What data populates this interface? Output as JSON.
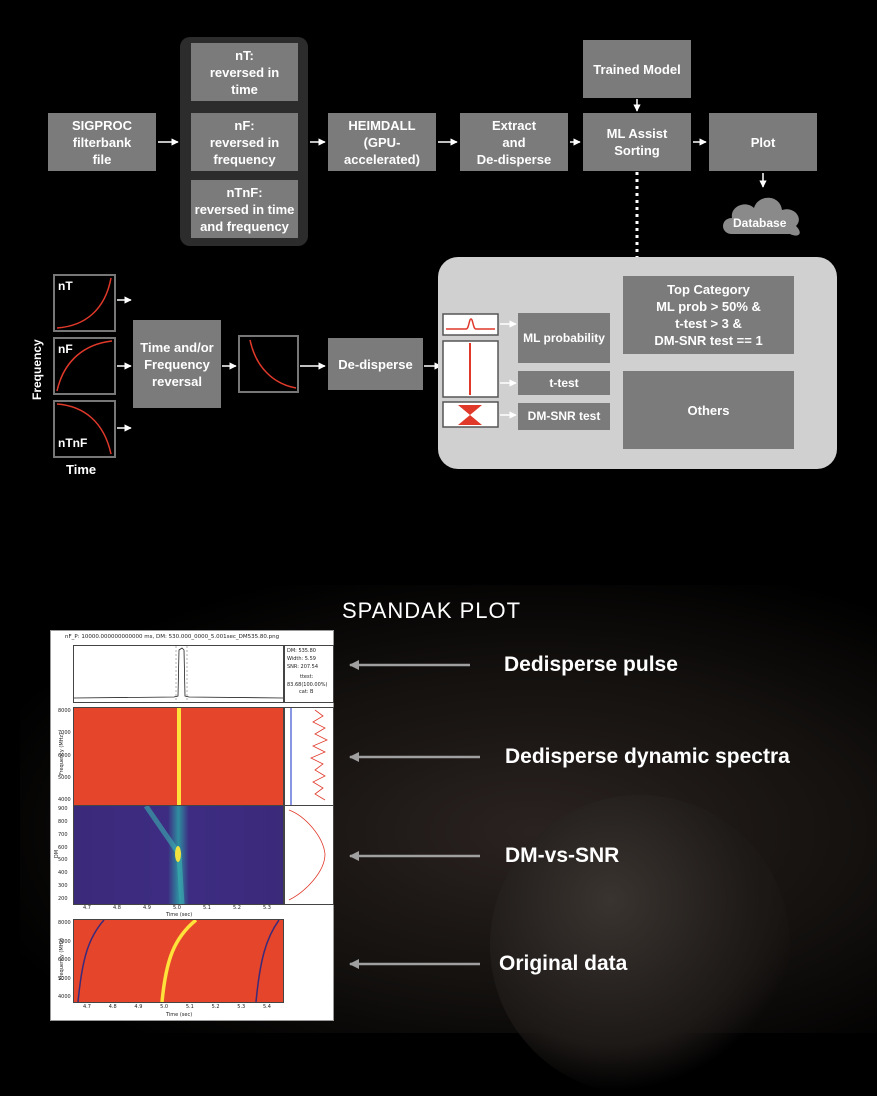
{
  "pipeline": {
    "input": "SIGPROC\nfilterbank\nfile",
    "nT": "nT:\nreversed in\ntime",
    "nF": "nF:\nreversed in\nfrequency",
    "nTnF": "nTnF:\nreversed in time\nand frequency",
    "heimdall": "HEIMDALL\n(GPU-\naccelerated)",
    "extract": "Extract\nand\nDe-disperse",
    "trained_model": "Trained Model",
    "ml_assist": "ML Assist\nSorting",
    "plot": "Plot",
    "database": "Database"
  },
  "reversal": {
    "nT_label": "nT",
    "nF_label": "nF",
    "nTnF_label": "nTnF",
    "y_axis": "Frequency",
    "x_axis": "Time",
    "time_freq_box": "Time and/or\nFrequency\nreversal",
    "dedisperse_box": "De-disperse"
  },
  "tests": {
    "ml_probability": "ML probability",
    "t_test": "t-test",
    "dm_snr_test": "DM-SNR test",
    "top_category": "Top Category\nML prob > 50% &\nt-test > 3 &\nDM-SNR test == 1",
    "others": "Others"
  },
  "spandak": {
    "title": "SPANDAK PLOT",
    "plot_title": "nF_P: 10000.000000000000 ms, DM: 530.000_0000_5.001sec_DM535.80.png",
    "info": {
      "dm": "DM: 535.80",
      "width": "Width: 5.59",
      "snr": "SNR: 207.54",
      "ttest": "ttest:",
      "ttest_val": "83.68(100.00%)",
      "cat": "cat: B"
    },
    "y_ticks_freq": [
      "8000",
      "7000",
      "6000",
      "5000",
      "4000"
    ],
    "y_ticks_dm": [
      "900",
      "800",
      "700",
      "600",
      "500",
      "400",
      "300",
      "200"
    ],
    "x_ticks_top": [
      "4.7",
      "4.8",
      "4.9",
      "5.0",
      "5.1",
      "5.2",
      "5.3"
    ],
    "x_ticks_bottom": [
      "4.7",
      "4.8",
      "4.9",
      "5.0",
      "5.1",
      "5.2",
      "5.3",
      "5.4"
    ],
    "x_label": "Time (sec)",
    "y_label_freq": "Frequency (MHz)",
    "y_label_dm": "DM",
    "annotations": {
      "pulse": "Dedisperse pulse",
      "spectra": "Dedisperse dynamic spectra",
      "dmsnr": "DM-vs-SNR",
      "original": "Original data"
    }
  },
  "colors": {
    "box": "#7b7b7b",
    "panel": "#d0d0d0",
    "dark_panel": "#2c2c2c",
    "curve": "#e0392a",
    "waterfall": "#e5452b",
    "dm_bg": "#3b2a7a"
  }
}
